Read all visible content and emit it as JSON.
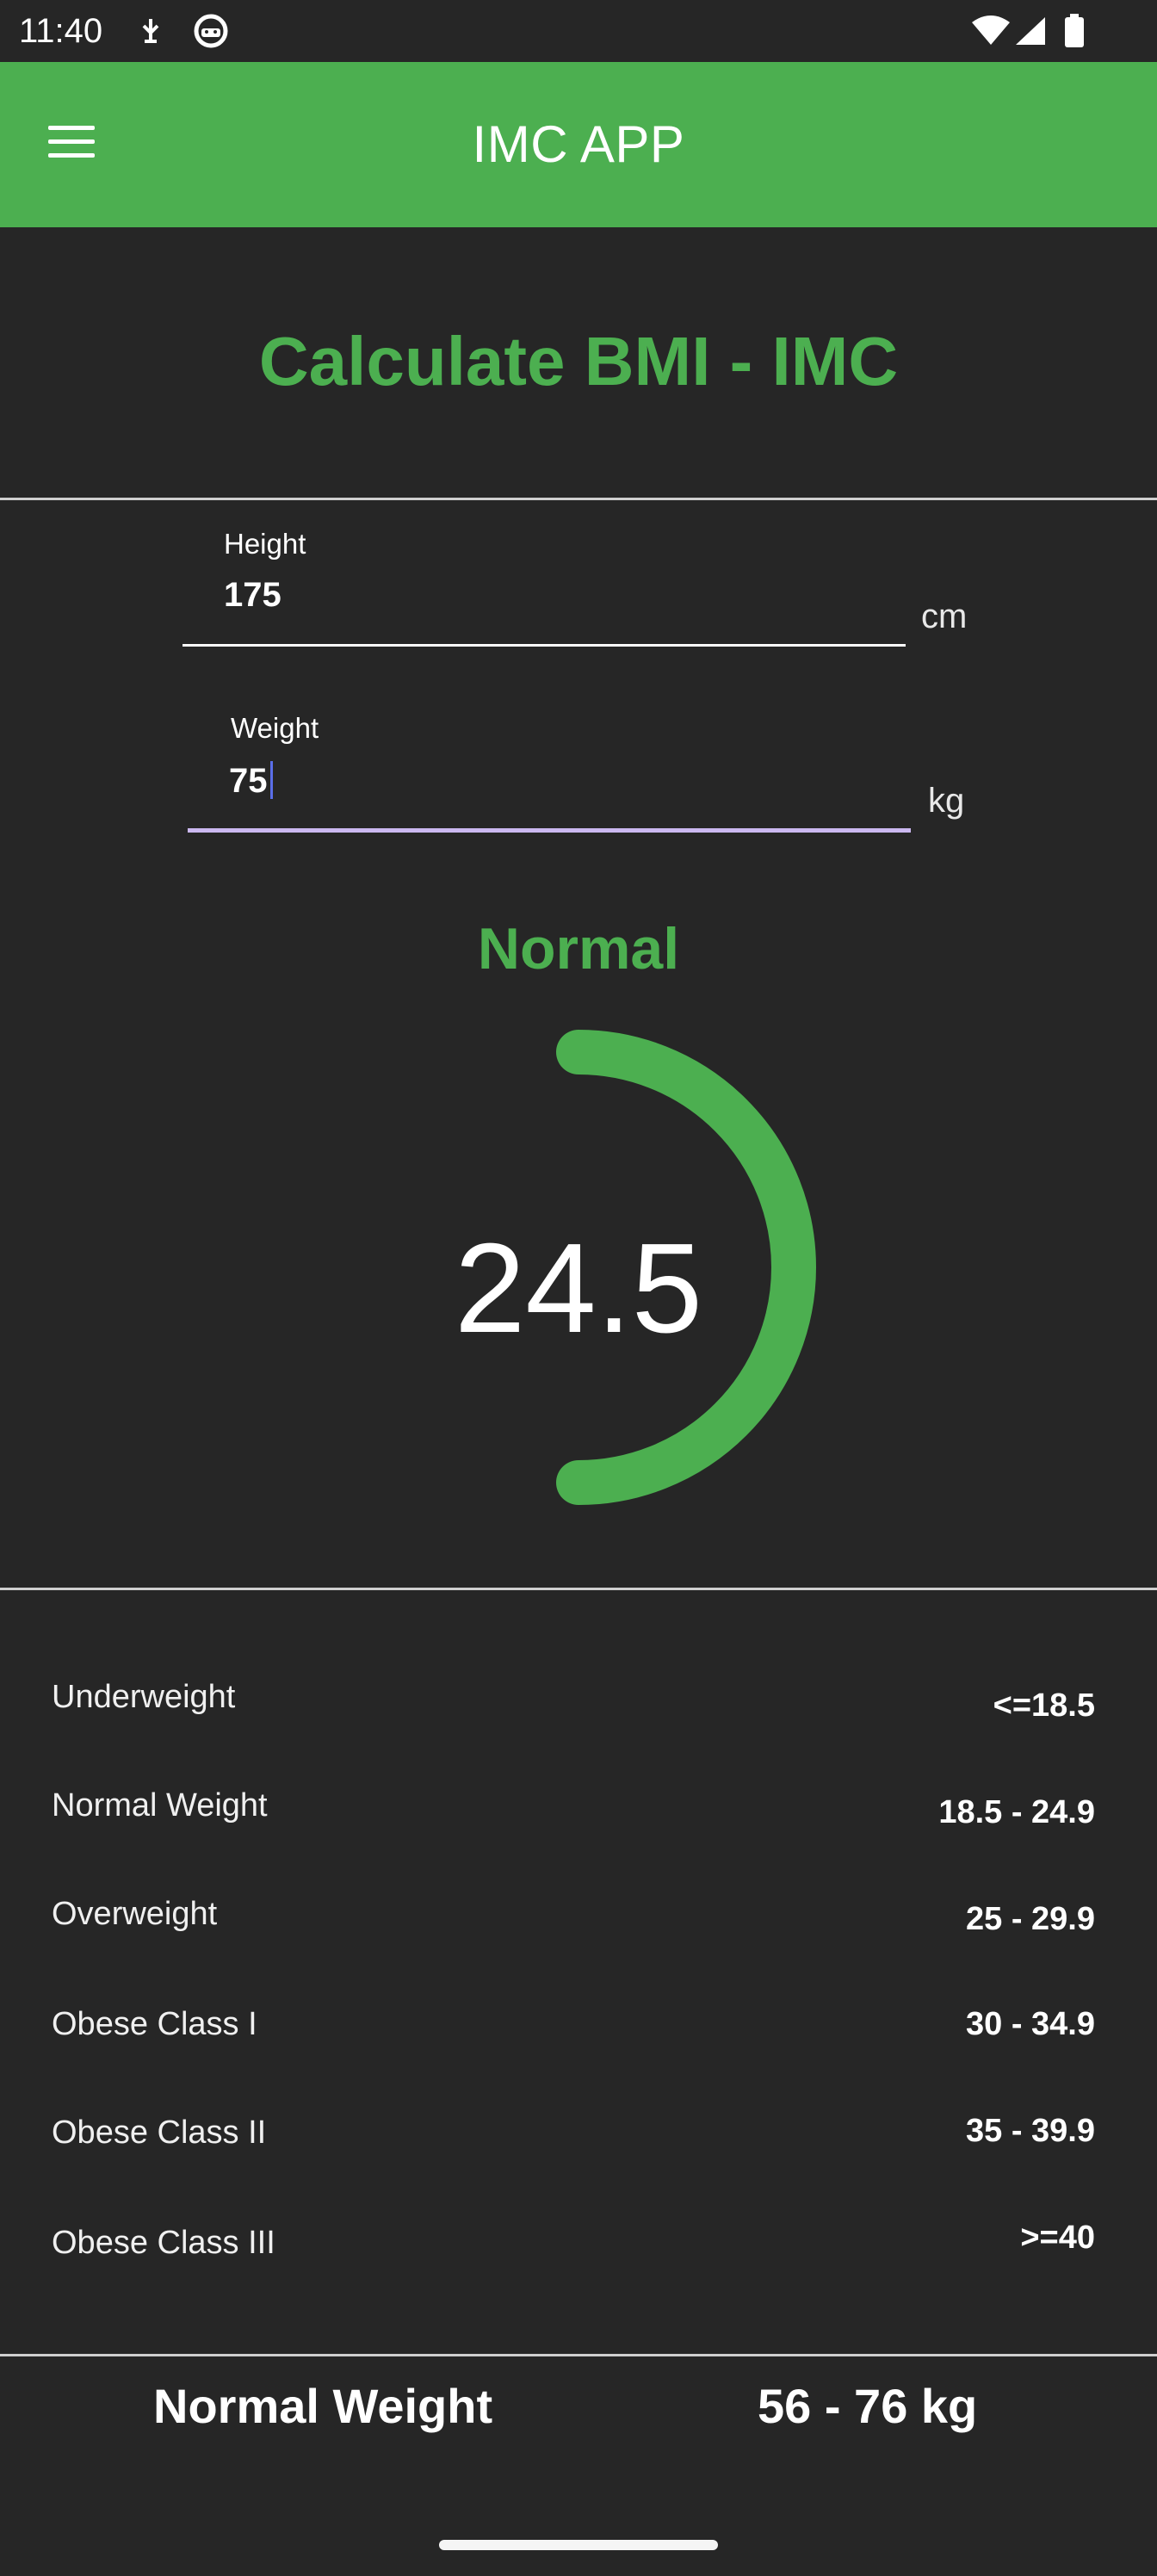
{
  "status_bar": {
    "time": "11:40",
    "icons": [
      "usb-debug-icon",
      "face-icon",
      "wifi-icon",
      "signal-icon",
      "battery-icon"
    ]
  },
  "app_bar": {
    "title": "IMC APP",
    "menu_icon": "hamburger-menu-icon",
    "color": "#4caf50"
  },
  "heading": "Calculate BMI - IMC",
  "inputs": {
    "height": {
      "label": "Height",
      "value": "175",
      "unit": "cm"
    },
    "weight": {
      "label": "Weight",
      "value": "75",
      "unit": "kg"
    }
  },
  "result": {
    "status": "Normal",
    "bmi": "24.5",
    "accent_color": "#4caf50"
  },
  "table": [
    {
      "label": "Underweight",
      "range": "<=18.5"
    },
    {
      "label": "Normal Weight",
      "range": "18.5 - 24.9"
    },
    {
      "label": "Overweight",
      "range": "25 - 29.9"
    },
    {
      "label": "Obese Class I",
      "range": "30 - 34.9"
    },
    {
      "label": "Obese Class II",
      "range": "35 - 39.9"
    },
    {
      "label": "Obese Class III",
      "range": ">=40"
    }
  ],
  "footer": {
    "label": "Normal Weight",
    "value": "56 - 76 kg"
  },
  "colors": {
    "background": "#262626",
    "accent": "#4caf50",
    "focus_underline": "#cbb8f0"
  }
}
